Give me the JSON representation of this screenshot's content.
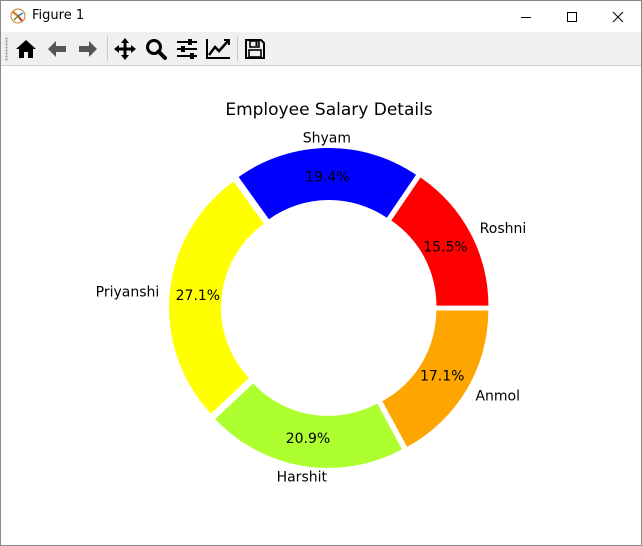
{
  "window": {
    "title": "Figure 1",
    "icons": [
      "matplotlib-logo-icon",
      "minimize-icon",
      "maximize-icon",
      "close-icon"
    ]
  },
  "toolbar": {
    "tools": [
      {
        "name": "home",
        "icon": "home-icon"
      },
      {
        "name": "back",
        "icon": "arrow-left-icon"
      },
      {
        "name": "forward",
        "icon": "arrow-right-icon"
      },
      {
        "name": "pan",
        "icon": "move-icon"
      },
      {
        "name": "zoom",
        "icon": "magnifier-icon"
      },
      {
        "name": "configure-subplots",
        "icon": "sliders-icon"
      },
      {
        "name": "edit-axis",
        "icon": "line-chart-icon"
      },
      {
        "name": "save",
        "icon": "floppy-disk-icon"
      }
    ]
  },
  "chart_data": {
    "type": "pie",
    "style": "donut",
    "title": "Employee Salary Details",
    "autopct_format": "%1.1f%%",
    "slices": [
      {
        "label": "Roshni",
        "value": 15.5,
        "pct_label": "15.5%",
        "color": "#ff0000"
      },
      {
        "label": "Shyam",
        "value": 19.4,
        "pct_label": "19.4%",
        "color": "#0000ff"
      },
      {
        "label": "Priyanshi",
        "value": 27.1,
        "pct_label": "27.1%",
        "color": "#ffff00"
      },
      {
        "label": "Harshit",
        "value": 20.9,
        "pct_label": "20.9%",
        "color": "#adff2f"
      },
      {
        "label": "Anmol",
        "value": 17.1,
        "pct_label": "17.1%",
        "color": "#ffa500"
      }
    ],
    "start_angle_deg": 0,
    "direction": "counterclockwise",
    "center_hole": "white",
    "legend": "none"
  }
}
